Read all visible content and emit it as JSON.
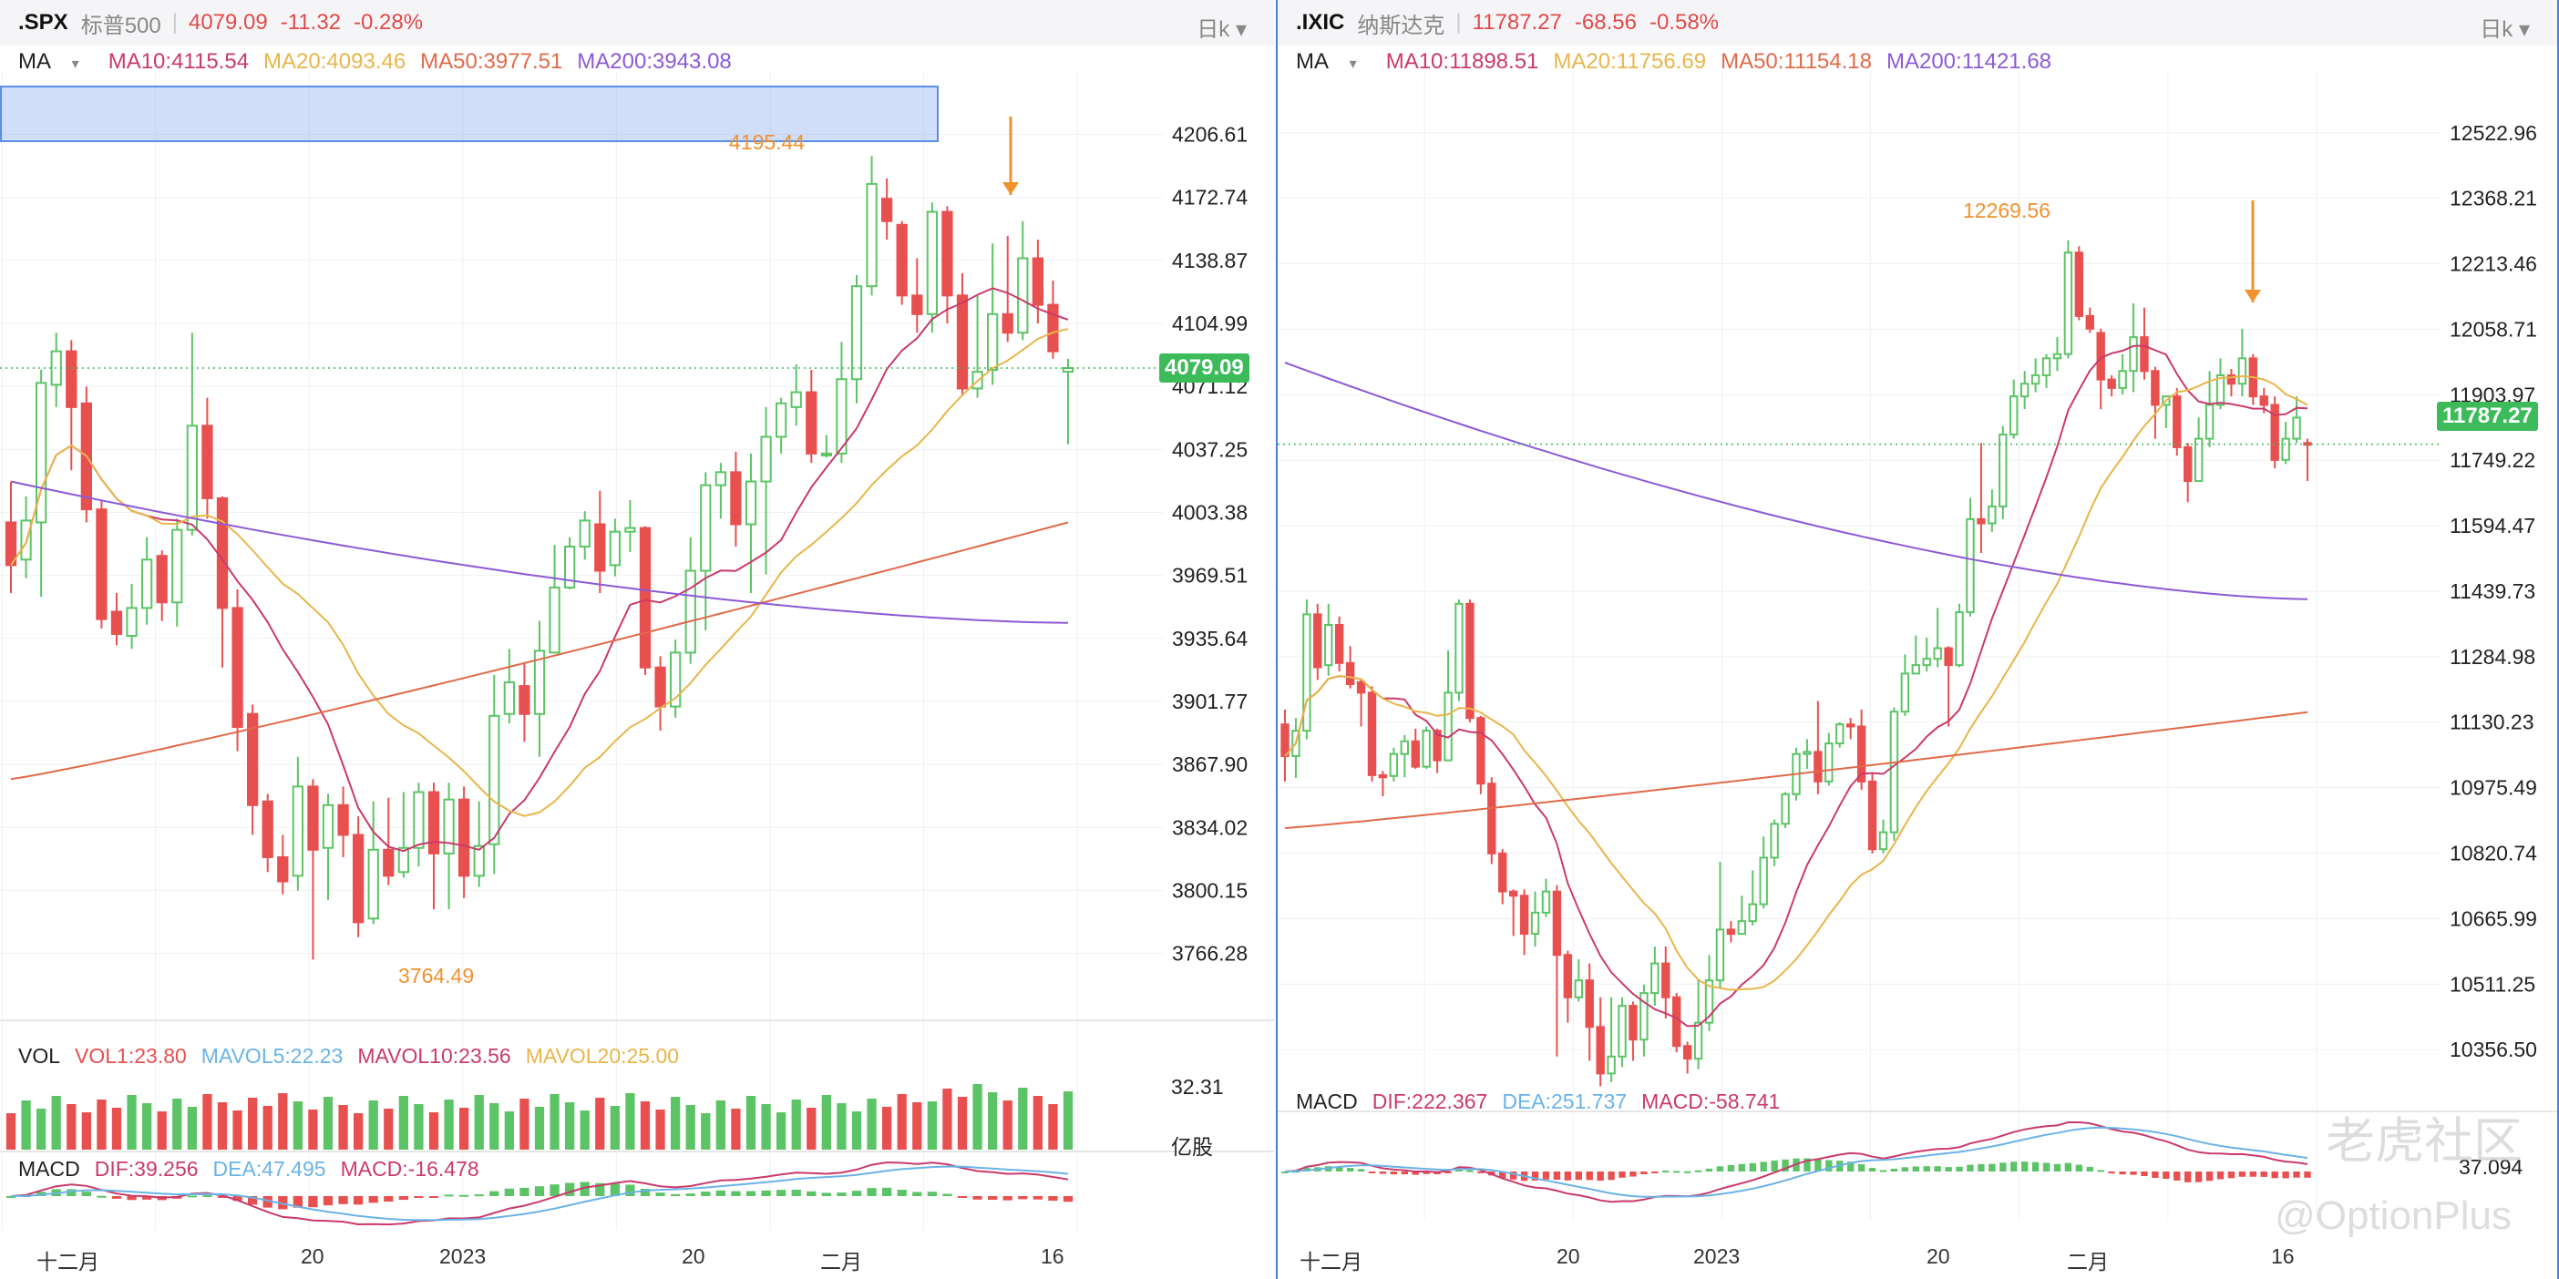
{
  "colors": {
    "up": "#5cc466",
    "down": "#e85050",
    "ma10": "#c93a6b",
    "ma20": "#e8b64a",
    "ma50": "#e06a4a",
    "ma200": "#8c5ad6",
    "dif": "#c93a6b",
    "dea": "#6ab3e6",
    "accent": "#f0922e"
  },
  "spx": {
    "header": {
      "symbol": ".SPX",
      "name": "标普500",
      "price": "4079.09",
      "change": "-11.32",
      "pct": "-0.28%",
      "period": "日k"
    },
    "ma_legend": {
      "label": "MA",
      "ma10": "MA10:4115.54",
      "ma20": "MA20:4093.46",
      "ma50": "MA50:3977.51",
      "ma200": "MA200:3943.08"
    },
    "vol_legend": {
      "label": "VOL",
      "vol1": "VOL1:23.80",
      "mavol5": "MAVOL5:22.23",
      "mavol10": "MAVOL10:23.56",
      "mavol20": "MAVOL20:25.00"
    },
    "vol_axis": {
      "top": "32.31",
      "unit": "亿股"
    },
    "macd_legend": {
      "label": "MACD",
      "dif": "DIF:39.256",
      "dea": "DEA:47.495",
      "macd": "MACD:-16.478"
    },
    "annotations": {
      "high": "4195.44",
      "low": "3764.49"
    },
    "current_tag": "4079.09",
    "x_ticks": [
      {
        "label": "十二月"
      },
      {
        "label": "20"
      },
      {
        "label": "2023"
      },
      {
        "label": "20"
      },
      {
        "label": "二月"
      },
      {
        "label": "16"
      }
    ]
  },
  "ixic": {
    "header": {
      "symbol": ".IXIC",
      "name": "纳斯达克",
      "price": "11787.27",
      "change": "-68.56",
      "pct": "-0.58%",
      "period": "日k"
    },
    "ma_legend": {
      "label": "MA",
      "ma10": "MA10:11898.51",
      "ma20": "MA20:11756.69",
      "ma50": "MA50:11154.18",
      "ma200": "MA200:11421.68"
    },
    "macd_legend": {
      "label": "MACD",
      "dif": "DIF:222.367",
      "dea": "DEA:251.737",
      "macd": "MACD:-58.741"
    },
    "macd_axis": "37.094",
    "annotations": {
      "high": "12269.56"
    },
    "current_tag": "11787.27",
    "x_ticks": [
      {
        "label": "十二月"
      },
      {
        "label": "20"
      },
      {
        "label": "2023"
      },
      {
        "label": "20"
      },
      {
        "label": "二月"
      },
      {
        "label": "16"
      }
    ]
  },
  "watermark": {
    "brand": "老虎社区",
    "handle": "@OptionPlus"
  },
  "chart_data": [
    {
      "type": "candlestick",
      "title": ".SPX 标普500 日k",
      "ylim": [
        3745,
        4225
      ],
      "y_ticks": [
        "4206.61",
        "4172.74",
        "4138.87",
        "4104.99",
        "4071.12",
        "4037.25",
        "4003.38",
        "3969.51",
        "3935.64",
        "3901.77",
        "3867.90",
        "3834.02",
        "3800.15",
        "3766.28"
      ],
      "candles": [
        [
          3998,
          3975,
          4020,
          3960
        ],
        [
          3978,
          3999,
          4012,
          3968
        ],
        [
          3998,
          4073,
          4080,
          3958
        ],
        [
          4072,
          4090,
          4100,
          4060
        ],
        [
          4090,
          4060,
          4096,
          4026
        ],
        [
          4062,
          4005,
          4071,
          3998
        ],
        [
          4005,
          3946,
          4010,
          3941
        ],
        [
          3950,
          3938,
          3960,
          3932
        ],
        [
          3937,
          3952,
          3965,
          3930
        ],
        [
          3952,
          3978,
          3990,
          3943
        ],
        [
          3980,
          3955,
          3983,
          3945
        ],
        [
          3955,
          3994,
          4000,
          3942
        ],
        [
          3994,
          4050,
          4100,
          3991
        ],
        [
          4050,
          4011,
          4065,
          4000
        ],
        [
          4011,
          3952,
          4012,
          3920
        ],
        [
          3952,
          3888,
          3962,
          3875
        ],
        [
          3895,
          3846,
          3900,
          3830
        ],
        [
          3848,
          3818,
          3852,
          3810
        ],
        [
          3818,
          3805,
          3830,
          3798
        ],
        [
          3808,
          3856,
          3872,
          3800
        ],
        [
          3856,
          3822,
          3860,
          3763
        ],
        [
          3823,
          3846,
          3852,
          3795
        ],
        [
          3846,
          3830,
          3856,
          3818
        ],
        [
          3830,
          3783,
          3840,
          3775
        ],
        [
          3785,
          3822,
          3848,
          3782
        ],
        [
          3822,
          3808,
          3850,
          3803
        ],
        [
          3810,
          3823,
          3853,
          3807
        ],
        [
          3823,
          3853,
          3858,
          3813
        ],
        [
          3853,
          3820,
          3858,
          3790
        ],
        [
          3820,
          3849,
          3858,
          3790
        ],
        [
          3849,
          3808,
          3856,
          3796
        ],
        [
          3808,
          3824,
          3848,
          3802
        ],
        [
          3825,
          3894,
          3916,
          3809
        ],
        [
          3895,
          3912,
          3930,
          3890
        ],
        [
          3910,
          3895,
          3922,
          3880
        ],
        [
          3895,
          3929,
          3945,
          3872
        ],
        [
          3928,
          3963,
          3986,
          3928
        ],
        [
          3963,
          3985,
          3990,
          3962
        ],
        [
          3985,
          3999,
          4004,
          3978
        ],
        [
          3997,
          3972,
          4015,
          3960
        ],
        [
          3975,
          3993,
          4000,
          3969
        ],
        [
          3993,
          3995,
          4010,
          3982
        ],
        [
          3995,
          3920,
          3996,
          3916
        ],
        [
          3920,
          3899,
          3926,
          3886
        ],
        [
          3899,
          3928,
          3935,
          3893
        ],
        [
          3928,
          3972,
          3990,
          3922
        ],
        [
          3972,
          4018,
          4025,
          3940
        ],
        [
          4018,
          4025,
          4030,
          4000
        ],
        [
          4025,
          3997,
          4036,
          3985
        ],
        [
          3997,
          4020,
          4035,
          3960
        ],
        [
          4020,
          4044,
          4060,
          3970
        ],
        [
          4044,
          4062,
          4065,
          4035
        ],
        [
          4060,
          4068,
          4083,
          4050
        ],
        [
          4068,
          4035,
          4080,
          4030
        ],
        [
          4035,
          4035,
          4045,
          4033
        ],
        [
          4035,
          4075,
          4095,
          4030
        ],
        [
          4075,
          4125,
          4131,
          4062
        ],
        [
          4125,
          4180,
          4195,
          4120
        ],
        [
          4172,
          4160,
          4183,
          4150
        ],
        [
          4158,
          4120,
          4160,
          4115
        ],
        [
          4120,
          4110,
          4140,
          4100
        ],
        [
          4110,
          4165,
          4170,
          4100
        ],
        [
          4165,
          4120,
          4168,
          4105
        ],
        [
          4120,
          4070,
          4132,
          4066
        ],
        [
          4070,
          4079,
          4120,
          4065
        ],
        [
          4080,
          4110,
          4148,
          4072
        ],
        [
          4110,
          4100,
          4152,
          4095
        ],
        [
          4100,
          4140,
          4160,
          4096
        ],
        [
          4140,
          4115,
          4150,
          4105
        ],
        [
          4115,
          4090,
          4128,
          4086
        ],
        [
          4079,
          4081,
          4086,
          4040
        ]
      ]
    },
    {
      "type": "candlestick",
      "title": ".IXIC 纳斯达克 日k",
      "ylim": [
        10275,
        12600
      ],
      "y_ticks": [
        "12522.96",
        "12368.21",
        "12213.46",
        "12058.71",
        "11903.97",
        "11749.22",
        "11594.47",
        "11439.73",
        "11284.98",
        "11130.23",
        "10975.49",
        "10820.74",
        "10665.99",
        "10511.25",
        "10356.50"
      ],
      "candles": [
        [
          11125,
          11050,
          11160,
          10990
        ],
        [
          11050,
          11110,
          11140,
          10998
        ],
        [
          11110,
          11385,
          11420,
          11090
        ],
        [
          11385,
          11260,
          11410,
          11230
        ],
        [
          11265,
          11360,
          11410,
          11240
        ],
        [
          11360,
          11270,
          11380,
          11250
        ],
        [
          11270,
          11220,
          11310,
          11210
        ],
        [
          11225,
          11200,
          11230,
          11120
        ],
        [
          11200,
          11005,
          11215,
          10990
        ],
        [
          11005,
          11000,
          11015,
          10955
        ],
        [
          11003,
          11055,
          11070,
          10990
        ],
        [
          11055,
          11085,
          11100,
          11000
        ],
        [
          11085,
          11025,
          11115,
          11020
        ],
        [
          11025,
          11110,
          11120,
          11020
        ],
        [
          11110,
          11040,
          11115,
          11010
        ],
        [
          11040,
          11200,
          11300,
          11040
        ],
        [
          11200,
          11410,
          11420,
          11180
        ],
        [
          11410,
          11140,
          11420,
          11130
        ],
        [
          11140,
          10985,
          11145,
          10960
        ],
        [
          10985,
          10820,
          11000,
          10795
        ],
        [
          10820,
          10730,
          10830,
          10700
        ],
        [
          10730,
          10720,
          10735,
          10625
        ],
        [
          10720,
          10630,
          10735,
          10580
        ],
        [
          10630,
          10680,
          10730,
          10600
        ],
        [
          10680,
          10730,
          10760,
          10670
        ],
        [
          10730,
          10580,
          10745,
          10340
        ],
        [
          10580,
          10480,
          10590,
          10420
        ],
        [
          10480,
          10520,
          10570,
          10470
        ],
        [
          10520,
          10410,
          10560,
          10330
        ],
        [
          10410,
          10300,
          10480,
          10270
        ],
        [
          10300,
          10340,
          10480,
          10280
        ],
        [
          10340,
          10460,
          10480,
          10315
        ],
        [
          10460,
          10380,
          10470,
          10330
        ],
        [
          10380,
          10490,
          10510,
          10340
        ],
        [
          10490,
          10560,
          10600,
          10460
        ],
        [
          10560,
          10480,
          10600,
          10430
        ],
        [
          10480,
          10365,
          10490,
          10350
        ],
        [
          10365,
          10335,
          10375,
          10300
        ],
        [
          10335,
          10420,
          10520,
          10310
        ],
        [
          10420,
          10520,
          10580,
          10400
        ],
        [
          10520,
          10640,
          10800,
          10500
        ],
        [
          10640,
          10630,
          10660,
          10610
        ],
        [
          10630,
          10660,
          10720,
          10630
        ],
        [
          10660,
          10700,
          10780,
          10650
        ],
        [
          10700,
          10810,
          10860,
          10690
        ],
        [
          10810,
          10890,
          10900,
          10790
        ],
        [
          10890,
          10960,
          10965,
          10880
        ],
        [
          10960,
          11055,
          11070,
          10945
        ],
        [
          11055,
          11060,
          11090,
          11020
        ],
        [
          11060,
          10990,
          11180,
          10960
        ],
        [
          10990,
          11080,
          11105,
          10980
        ],
        [
          11080,
          11125,
          11130,
          11070
        ],
        [
          11125,
          11120,
          11140,
          11090
        ],
        [
          11120,
          10990,
          11160,
          10970
        ],
        [
          10990,
          10830,
          11010,
          10820
        ],
        [
          10830,
          10870,
          10900,
          10820
        ],
        [
          10870,
          11155,
          11165,
          10850
        ],
        [
          11155,
          11245,
          11290,
          11145
        ],
        [
          11245,
          11265,
          11335,
          11245
        ],
        [
          11265,
          11280,
          11330,
          11250
        ],
        [
          11280,
          11305,
          11400,
          11260
        ],
        [
          11305,
          11265,
          11310,
          11120
        ],
        [
          11265,
          11390,
          11410,
          11260
        ],
        [
          11390,
          11610,
          11660,
          11380
        ],
        [
          11610,
          11600,
          11790,
          11530
        ],
        [
          11600,
          11640,
          11680,
          11580
        ],
        [
          11640,
          11810,
          11830,
          11610
        ],
        [
          11810,
          11900,
          11940,
          11800
        ],
        [
          11900,
          11930,
          11960,
          11870
        ],
        [
          11930,
          11950,
          11990,
          11910
        ],
        [
          11950,
          11990,
          12000,
          11920
        ],
        [
          11990,
          12000,
          12040,
          11960
        ],
        [
          12000,
          12240,
          12269,
          11990
        ],
        [
          12240,
          12090,
          12255,
          12080
        ],
        [
          12090,
          12060,
          12110,
          12050
        ],
        [
          12050,
          11940,
          12060,
          11870
        ],
        [
          11940,
          11920,
          11950,
          11900
        ],
        [
          11920,
          11960,
          12000,
          11905
        ],
        [
          11960,
          12040,
          12120,
          11910
        ],
        [
          12040,
          11960,
          12110,
          11940
        ],
        [
          11960,
          11880,
          11970,
          11800
        ],
        [
          11880,
          11900,
          11900,
          11825
        ],
        [
          11900,
          11780,
          11920,
          11760
        ],
        [
          11780,
          11700,
          11790,
          11650
        ],
        [
          11700,
          11800,
          11850,
          11700
        ],
        [
          11800,
          11880,
          11960,
          11780
        ],
        [
          11880,
          11950,
          11990,
          11870
        ],
        [
          11950,
          11930,
          11965,
          11900
        ],
        [
          11930,
          11990,
          12060,
          11900
        ],
        [
          11990,
          11900,
          12000,
          11880
        ],
        [
          11900,
          11880,
          11920,
          11860
        ],
        [
          11880,
          11750,
          11900,
          11730
        ],
        [
          11750,
          11800,
          11840,
          11740
        ],
        [
          11800,
          11850,
          11900,
          11790
        ],
        [
          11790,
          11787,
          11800,
          11700
        ]
      ]
    }
  ]
}
